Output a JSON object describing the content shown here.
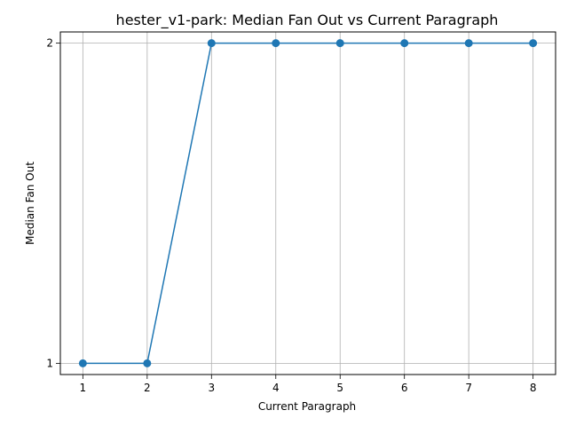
{
  "chart_data": {
    "type": "line",
    "title": "hester_v1-park: Median Fan Out vs Current Paragraph",
    "xlabel": "Current Paragraph",
    "ylabel": "Median Fan Out",
    "x": [
      1,
      2,
      3,
      4,
      5,
      6,
      7,
      8
    ],
    "series": [
      {
        "name": "Median Fan Out",
        "values": [
          1,
          1,
          2,
          2,
          2,
          2,
          2,
          2
        ],
        "color": "#1f77b4",
        "marker": "circle"
      }
    ],
    "xlim": [
      0.65,
      8.35
    ],
    "ylim": [
      0.965,
      2.035
    ],
    "xticks": [
      1,
      2,
      3,
      4,
      5,
      6,
      7,
      8
    ],
    "yticks": [
      1,
      2
    ],
    "grid": true,
    "legend": "none"
  }
}
